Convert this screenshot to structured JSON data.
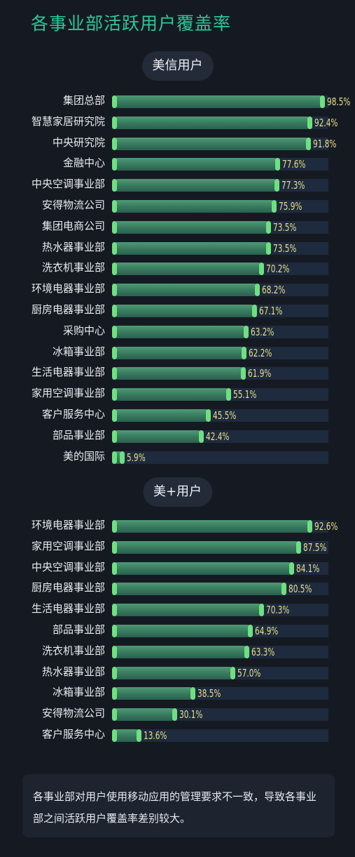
{
  "title": "各事业部活跃用户覆盖率",
  "footnote": "各事业部对用户使用移动应用的管理要求不一致，导致各事业部之间活跃用户覆盖率差别较大。",
  "colors": {
    "background": "#151a22",
    "title": "#2ec79a",
    "bar_fill": "#3a7f61",
    "bar_cap": "#6fe07f",
    "track": "#1e2a3d",
    "value_text": "#e8df8a"
  },
  "chart_data": [
    {
      "type": "bar",
      "orientation": "horizontal",
      "title": "美信用户",
      "xlim": [
        0,
        100
      ],
      "unit": "%",
      "categories": [
        "集团总部",
        "智慧家居研究院",
        "中央研究院",
        "金融中心",
        "中央空调事业部",
        "安得物流公司",
        "集团电商公司",
        "热水器事业部",
        "洗衣机事业部",
        "环境电器事业部",
        "厨房电器事业部",
        "采购中心",
        "冰箱事业部",
        "生活电器事业部",
        "家用空调事业部",
        "客户服务中心",
        "部品事业部",
        "美的国际"
      ],
      "values": [
        98.5,
        92.4,
        91.8,
        77.6,
        77.3,
        75.9,
        73.5,
        73.5,
        70.2,
        68.2,
        67.1,
        63.2,
        62.2,
        61.9,
        55.1,
        45.5,
        42.4,
        5.9
      ],
      "value_labels": [
        "98.5%",
        "92.4%",
        "91.8%",
        "77.6%",
        "77.3%",
        "75.9%",
        "73.5%",
        "73.5%",
        "70.2%",
        "68.2%",
        "67.1%",
        "63.2%",
        "62.2%",
        "61.9%",
        "55.1%",
        "45.5%",
        "42.4%",
        "5.9%"
      ]
    },
    {
      "type": "bar",
      "orientation": "horizontal",
      "title": "美+用户",
      "xlim": [
        0,
        100
      ],
      "unit": "%",
      "categories": [
        "环境电器事业部",
        "家用空调事业部",
        "中央空调事业部",
        "厨房电器事业部",
        "生活电器事业部",
        "部品事业部",
        "洗衣机事业部",
        "热水器事业部",
        "冰箱事业部",
        "安得物流公司",
        "客户服务中心"
      ],
      "values": [
        92.6,
        87.5,
        84.1,
        80.5,
        70.3,
        64.9,
        63.3,
        57.0,
        38.5,
        30.1,
        13.6
      ],
      "value_labels": [
        "92.6%",
        "87.5%",
        "84.1%",
        "80.5%",
        "70.3%",
        "64.9%",
        "63.3%",
        "57.0%",
        "38.5%",
        "30.1%",
        "13.6%"
      ]
    }
  ]
}
